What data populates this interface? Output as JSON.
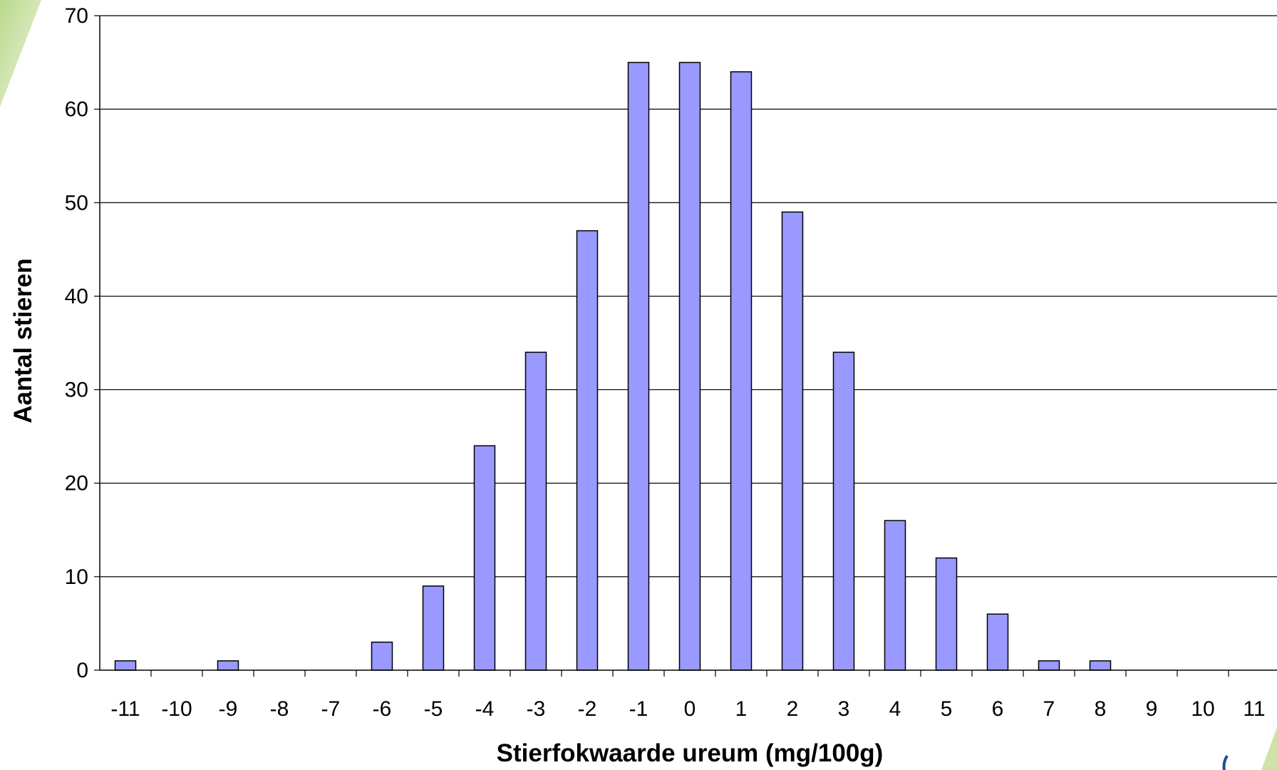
{
  "chart_data": {
    "type": "bar",
    "title": "",
    "xlabel": "Stierfokwaarde ureum (mg/100g)",
    "ylabel": "Aantal stieren",
    "categories": [
      "-11",
      "-10",
      "-9",
      "-8",
      "-7",
      "-6",
      "-5",
      "-4",
      "-3",
      "-2",
      "-1",
      "0",
      "1",
      "2",
      "3",
      "4",
      "5",
      "6",
      "7",
      "8",
      "9",
      "10",
      "11"
    ],
    "values": [
      1,
      0,
      1,
      0,
      0,
      3,
      9,
      24,
      34,
      47,
      65,
      65,
      64,
      49,
      34,
      16,
      12,
      6,
      1,
      1,
      0,
      0,
      0
    ],
    "ylim": [
      0,
      70
    ],
    "yticks": [
      0,
      10,
      20,
      30,
      40,
      50,
      60,
      70
    ],
    "grid": true,
    "legend": "none",
    "colors": {
      "bar_fill": "#9999FF",
      "bar_stroke": "#000000",
      "gridline": "#000000"
    }
  }
}
